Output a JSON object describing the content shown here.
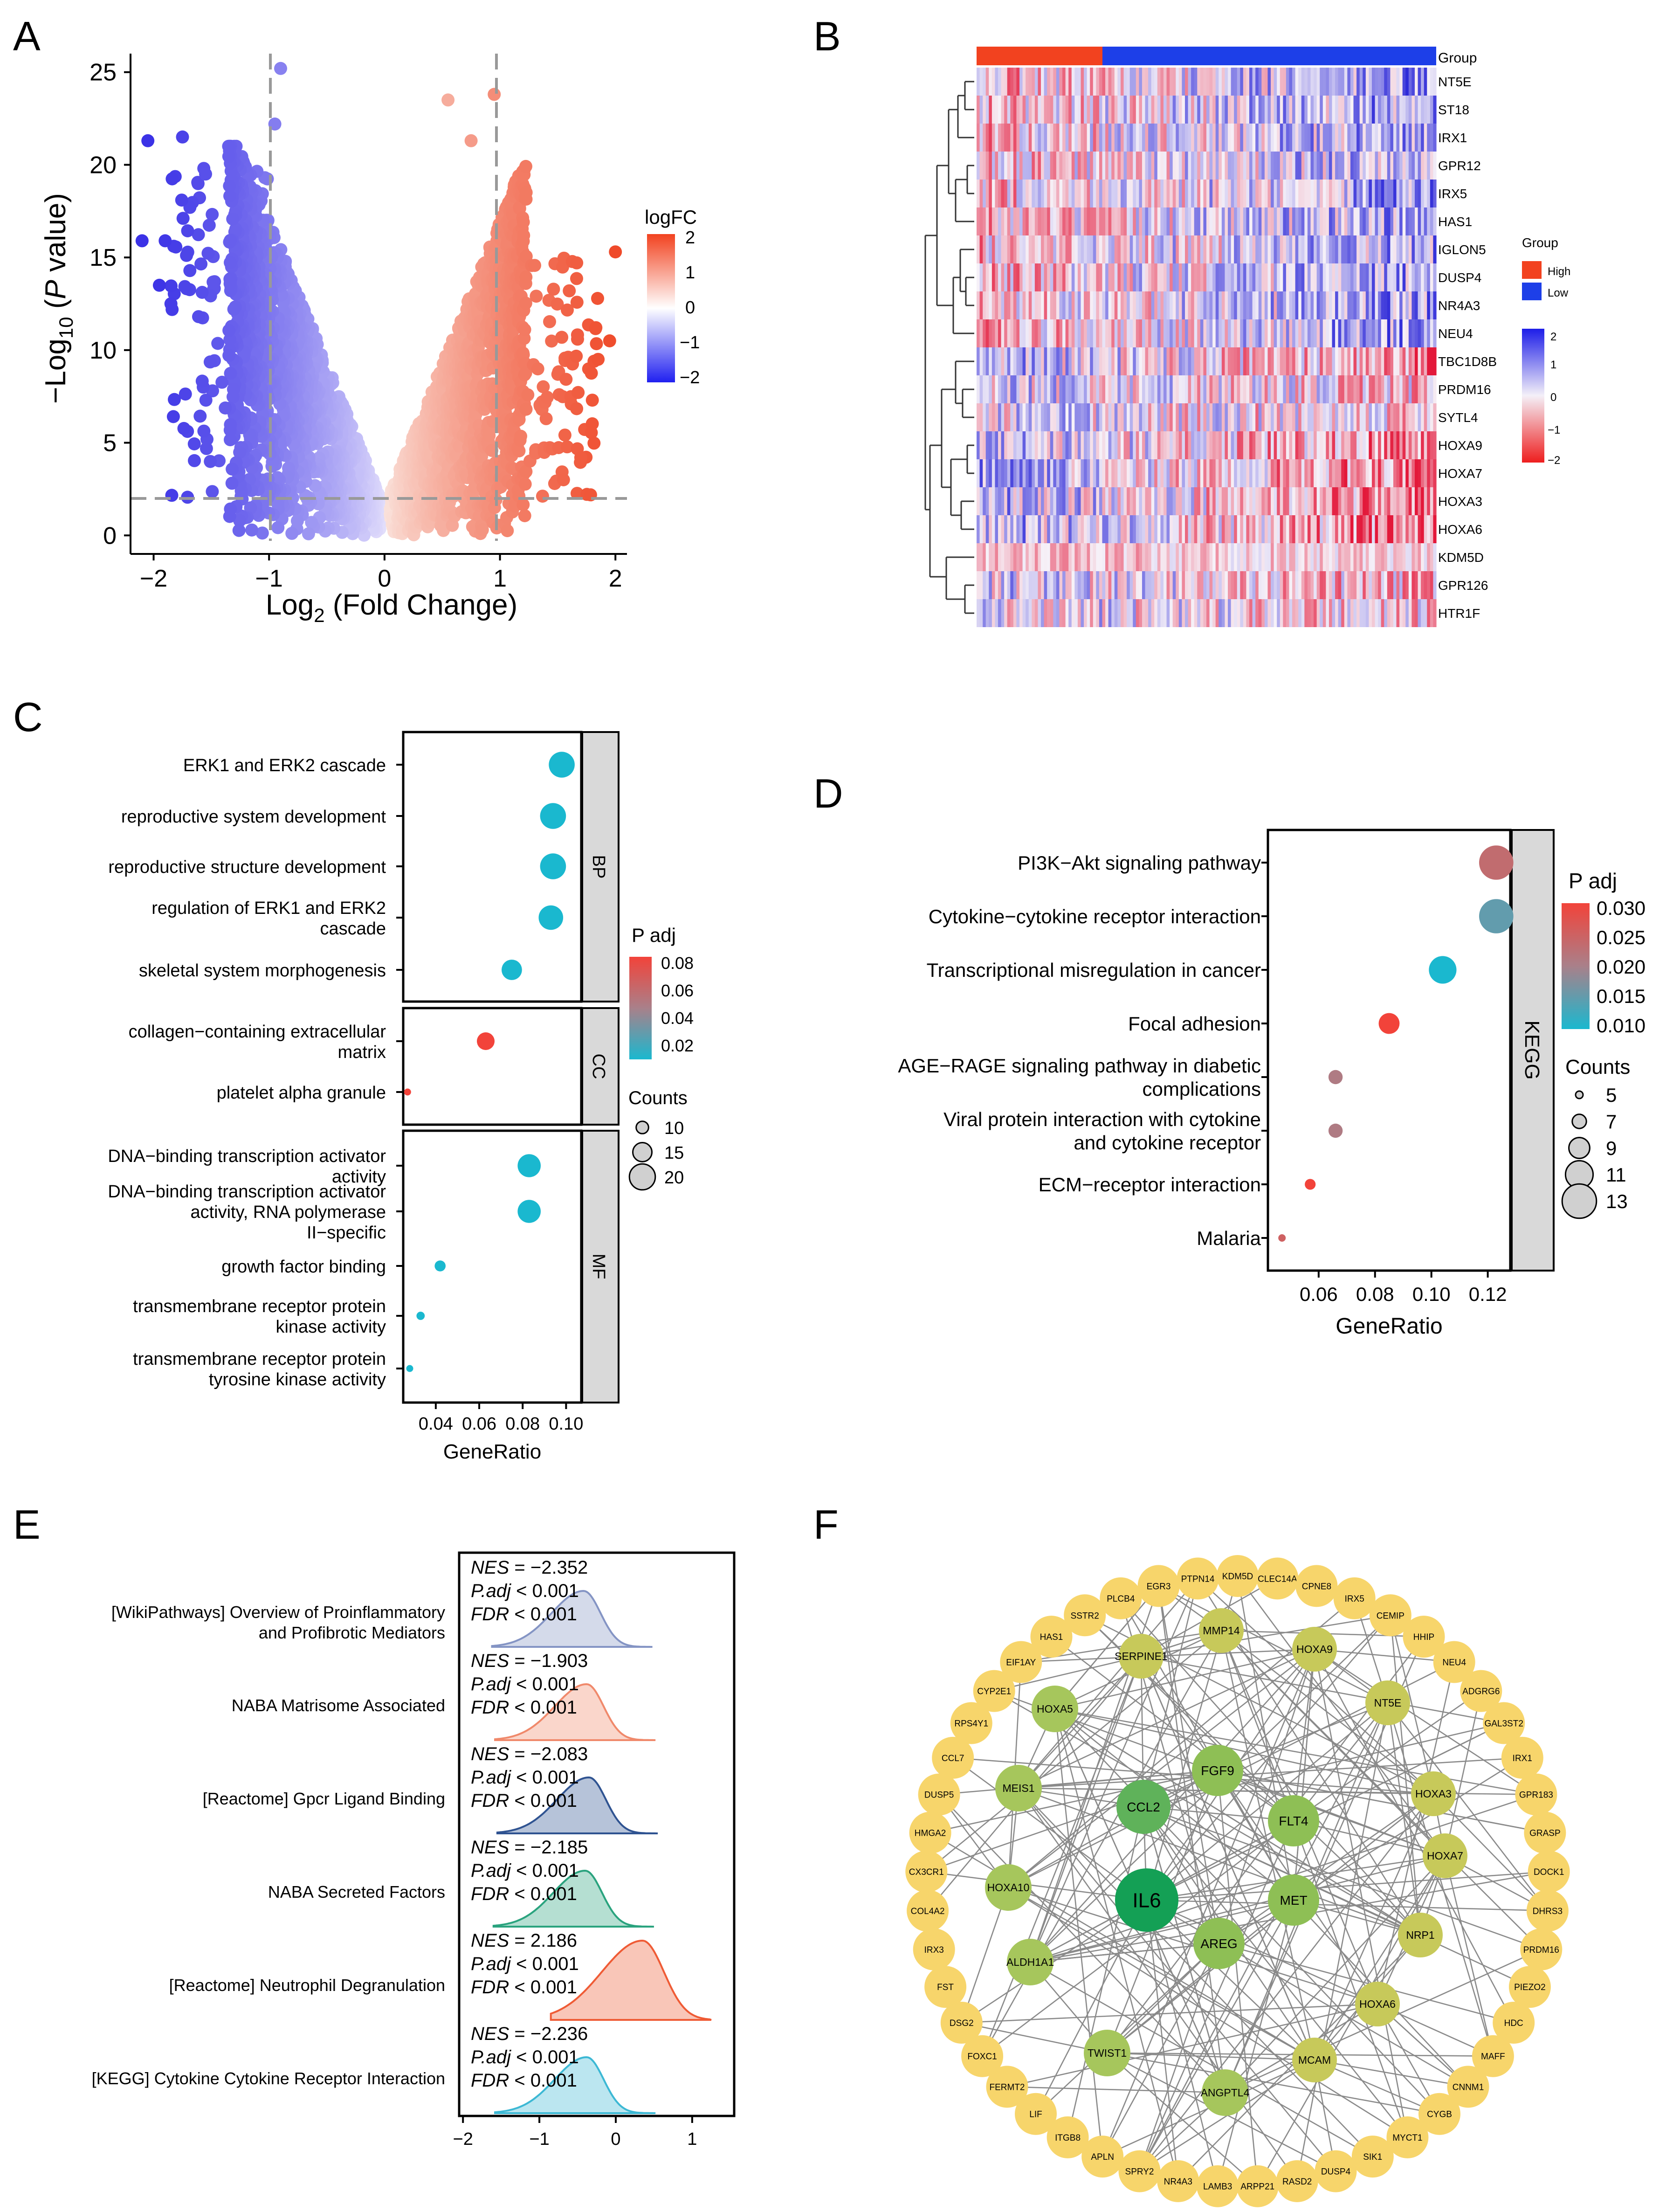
{
  "panel_letters": [
    "A",
    "B",
    "C",
    "D",
    "E",
    "F"
  ],
  "colors": {
    "up": "#ee5a3f",
    "down": "#4a40e8",
    "cyan": "#1ab8cf",
    "high": "#f2421f",
    "low": "#1d3fe8",
    "gene": "#f7d56b",
    "hub": "#0f9e58"
  },
  "panelA": {
    "title_y": "−Log10 (P value)",
    "title_x": "Log2 (Fold Change)",
    "y_label_main": "−Log",
    "y_label_sub": "10",
    "y_label_open": " (",
    "y_label_italic": "P",
    "y_label_close": " value)",
    "x_label_main": "Log",
    "x_label_sub": "2",
    "x_label_rest": " (Fold Change)",
    "legend_title": "logFC",
    "legend_ticks": [
      "2",
      "1",
      "0",
      "−1",
      "−2"
    ],
    "chart_data": {
      "type": "scatter",
      "x_ticks": [
        "−2",
        "−1",
        "0",
        "1",
        "2"
      ],
      "y_ticks": [
        "0",
        "5",
        "10",
        "15",
        "20",
        "25"
      ],
      "xlim": [
        -2.2,
        2.1
      ],
      "ylim": [
        -1,
        26
      ],
      "thresholds": {
        "logFC": [
          -1,
          1
        ],
        "neg_log10_p": 1.3
      },
      "highlight_points": [
        {
          "x": -2.05,
          "y": 21.3
        },
        {
          "x": -1.75,
          "y": 21.5
        },
        {
          "x": -2.1,
          "y": 15.9
        },
        {
          "x": -1.9,
          "y": 15.9
        },
        {
          "x": -1.55,
          "y": 19.5
        },
        {
          "x": -1.95,
          "y": 13.5
        },
        {
          "x": -1.85,
          "y": 12.5
        },
        {
          "x": -0.9,
          "y": 25.2
        },
        {
          "x": -0.95,
          "y": 22.2
        },
        {
          "x": 0.55,
          "y": 23.5
        },
        {
          "x": 0.95,
          "y": 23.8
        },
        {
          "x": 0.75,
          "y": 21.3
        },
        {
          "x": 2.0,
          "y": 15.3
        },
        {
          "x": 1.95,
          "y": 10.5
        },
        {
          "x": 1.85,
          "y": 9.5
        },
        {
          "x": 1.8,
          "y": 7.3
        },
        {
          "x": 1.6,
          "y": 13.2
        },
        {
          "x": 1.55,
          "y": 3.0
        },
        {
          "x": 1.4,
          "y": 6.3
        },
        {
          "x": 1.7,
          "y": 4.2
        }
      ]
    }
  },
  "panelB": {
    "group_label": "Group",
    "legend_group_title": "Group",
    "legend_high": "High",
    "legend_low": "Low",
    "scale_ticks": [
      "2",
      "1",
      "0",
      "−1",
      "−2"
    ],
    "genes": [
      "NT5E",
      "ST18",
      "IRX1",
      "GPR12",
      "IRX5",
      "HAS1",
      "IGLON5",
      "DUSP4",
      "NR4A3",
      "NEU4",
      "TBC1D8B",
      "PRDM16",
      "SYTL4",
      "HOXA9",
      "HOXA7",
      "HOXA3",
      "HOXA6",
      "KDM5D",
      "GPR126",
      "HTR1F"
    ]
  },
  "panelC": {
    "chart_data": {
      "type": "scatter",
      "xlabel": "GeneRatio",
      "x_ticks": [
        "0.04",
        "0.06",
        "0.08",
        "0.10"
      ],
      "xlim": [
        0.025,
        0.107
      ],
      "legend_padj_title": "P adj",
      "legend_padj_ticks": [
        "0.08",
        "0.06",
        "0.04",
        "0.02"
      ],
      "legend_counts_title": "Counts",
      "legend_counts": [
        "10",
        "15",
        "20"
      ],
      "facets": [
        {
          "name": "BP",
          "terms": [
            {
              "label": [
                "ERK1 and ERK2 cascade"
              ],
              "ratio": 0.098,
              "count": 20,
              "padj": 0.005
            },
            {
              "label": [
                "reproductive system development"
              ],
              "ratio": 0.094,
              "count": 20,
              "padj": 0.005
            },
            {
              "label": [
                "reproductive structure development"
              ],
              "ratio": 0.094,
              "count": 20,
              "padj": 0.005
            },
            {
              "label": [
                "regulation of ERK1 and ERK2",
                "cascade"
              ],
              "ratio": 0.093,
              "count": 19,
              "padj": 0.005
            },
            {
              "label": [
                "skeletal system morphogenesis"
              ],
              "ratio": 0.075,
              "count": 16,
              "padj": 0.005
            }
          ]
        },
        {
          "name": "CC",
          "terms": [
            {
              "label": [
                "collagen−containing extracellular",
                "matrix"
              ],
              "ratio": 0.063,
              "count": 14,
              "padj": 0.085
            },
            {
              "label": [
                "platelet alpha granule"
              ],
              "ratio": 0.027,
              "count": 6,
              "padj": 0.085
            }
          ]
        },
        {
          "name": "MF",
          "terms": [
            {
              "label": [
                "DNA−binding transcription activator",
                "activity"
              ],
              "ratio": 0.083,
              "count": 18,
              "padj": 0.005
            },
            {
              "label": [
                "DNA−binding transcription activator",
                "activity, RNA polymerase",
                "II−specific"
              ],
              "ratio": 0.083,
              "count": 18,
              "padj": 0.005
            },
            {
              "label": [
                "growth factor binding"
              ],
              "ratio": 0.042,
              "count": 9,
              "padj": 0.005
            },
            {
              "label": [
                "transmembrane receptor protein",
                "kinase activity"
              ],
              "ratio": 0.033,
              "count": 7,
              "padj": 0.005
            },
            {
              "label": [
                "transmembrane receptor protein",
                "tyrosine kinase activity"
              ],
              "ratio": 0.028,
              "count": 6,
              "padj": 0.005
            }
          ]
        }
      ]
    }
  },
  "panelD": {
    "chart_data": {
      "type": "scatter",
      "xlabel": "GeneRatio",
      "x_ticks": [
        "0.06",
        "0.08",
        "0.10",
        "0.12"
      ],
      "xlim": [
        0.042,
        0.128
      ],
      "facet": "KEGG",
      "legend_padj_title": "P adj",
      "legend_padj_ticks": [
        "0.030",
        "0.025",
        "0.020",
        "0.015",
        "0.010"
      ],
      "legend_counts_title": "Counts",
      "legend_counts": [
        "5",
        "7",
        "9",
        "11",
        "13"
      ],
      "terms": [
        {
          "label": [
            "PI3K−Akt signaling pathway"
          ],
          "ratio": 0.123,
          "count": 13,
          "padj": 0.022
        },
        {
          "label": [
            "Cytokine−cytokine receptor interaction"
          ],
          "ratio": 0.123,
          "count": 13,
          "padj": 0.012
        },
        {
          "label": [
            "Transcriptional misregulation in cancer"
          ],
          "ratio": 0.104,
          "count": 11,
          "padj": 0.006
        },
        {
          "label": [
            "Focal adhesion"
          ],
          "ratio": 0.085,
          "count": 9,
          "padj": 0.03
        },
        {
          "label": [
            "AGE−RAGE signaling pathway in diabetic",
            "complications"
          ],
          "ratio": 0.066,
          "count": 7,
          "padj": 0.019
        },
        {
          "label": [
            "Viral protein interaction with cytokine",
            "and cytokine receptor"
          ],
          "ratio": 0.066,
          "count": 7,
          "padj": 0.019
        },
        {
          "label": [
            "ECM−receptor interaction"
          ],
          "ratio": 0.057,
          "count": 6,
          "padj": 0.03
        },
        {
          "label": [
            "Malaria"
          ],
          "ratio": 0.047,
          "count": 5,
          "padj": 0.024
        }
      ]
    }
  },
  "panelE": {
    "chart_data": {
      "type": "area",
      "x_ticks": [
        "−2",
        "−1",
        "0",
        "1"
      ],
      "xlim": [
        -2.05,
        1.55
      ],
      "rows": [
        {
          "label": [
            "[WikiPathways] Overview of Proinflammatory",
            "and Profibrotic Mediators"
          ],
          "nes": "−2.352",
          "padj": "0.001",
          "fdr": "0.001",
          "peak": -0.42,
          "color": "#8494c4"
        },
        {
          "label": [
            "NABA Matrisome Associated"
          ],
          "nes": "−1.903",
          "padj": "0.001",
          "fdr": "0.001",
          "peak": -0.38,
          "color": "#f0896b"
        },
        {
          "label": [
            "[Reactome] Gpcr Ligand Binding"
          ],
          "nes": "−2.083",
          "padj": "0.001",
          "fdr": "0.001",
          "peak": -0.35,
          "color": "#2f5391"
        },
        {
          "label": [
            "NABA Secreted Factors"
          ],
          "nes": "−2.185",
          "padj": "0.001",
          "fdr": "0.001",
          "peak": -0.4,
          "color": "#2aa37e"
        },
        {
          "label": [
            "[Reactome] Neutrophil Degranulation"
          ],
          "nes": "2.186",
          "padj": "0.001",
          "fdr": "0.001",
          "peak": 0.35,
          "color": "#ef5b35"
        },
        {
          "label": [
            "[KEGG] Cytokine Cytokine Receptor Interaction"
          ],
          "nes": "−2.236",
          "padj": "0.001",
          "fdr": "0.001",
          "peak": -0.38,
          "color": "#3cb8d4"
        }
      ],
      "nes_label": "NES",
      "padj_label": "P.adj",
      "fdr_label": "FDR",
      "eq": " = ",
      "lt": " < "
    }
  },
  "panelF": {
    "outer_genes": [
      "KDM5D",
      "CLEC14A",
      "CPNE8",
      "IRX5",
      "CEMIP",
      "HHIP",
      "NEU4",
      "ADGRG6",
      "GAL3ST2",
      "IRX1",
      "GPR183",
      "GRASP",
      "DOCK1",
      "DHRS3",
      "PRDM16",
      "PIEZO2",
      "HDC",
      "MAFF",
      "CNNM1",
      "CYGB",
      "MYCT1",
      "SIK1",
      "DUSP4",
      "RASD2",
      "ARPP21",
      "LAMB3",
      "NR4A3",
      "SPRY2",
      "APLN",
      "ITGB8",
      "LIF",
      "FERMT2",
      "FOXC1",
      "DSG2",
      "FST",
      "IRX3",
      "COL4A2",
      "CX3CR1",
      "HMGA2",
      "DUSP5",
      "CCL7",
      "RPS4Y1",
      "CYP2E1",
      "EIF1AY",
      "HAS1",
      "SSTR2",
      "PLCB4",
      "EGR3",
      "PTPN14"
    ],
    "inner_genes": [
      {
        "name": "MMP14",
        "tone": 0
      },
      {
        "name": "HOXA9",
        "tone": 0
      },
      {
        "name": "SERPINE1",
        "tone": 0
      },
      {
        "name": "HOXA5",
        "tone": 1
      },
      {
        "name": "NT5E",
        "tone": 0
      },
      {
        "name": "MEIS1",
        "tone": 1
      },
      {
        "name": "FGF9",
        "tone": 2
      },
      {
        "name": "HOXA3",
        "tone": 0
      },
      {
        "name": "CCL2",
        "tone": 3
      },
      {
        "name": "FLT4",
        "tone": 2
      },
      {
        "name": "HOXA7",
        "tone": 0
      },
      {
        "name": "HOXA10",
        "tone": 1
      },
      {
        "name": "IL6",
        "tone": 4
      },
      {
        "name": "MET",
        "tone": 2
      },
      {
        "name": "AREG",
        "tone": 2
      },
      {
        "name": "NRP1",
        "tone": 0
      },
      {
        "name": "ALDH1A1",
        "tone": 1
      },
      {
        "name": "HOXA6",
        "tone": 0
      },
      {
        "name": "TWIST1",
        "tone": 1
      },
      {
        "name": "MCAM",
        "tone": 0
      },
      {
        "name": "ANGPTL4",
        "tone": 1
      }
    ]
  }
}
